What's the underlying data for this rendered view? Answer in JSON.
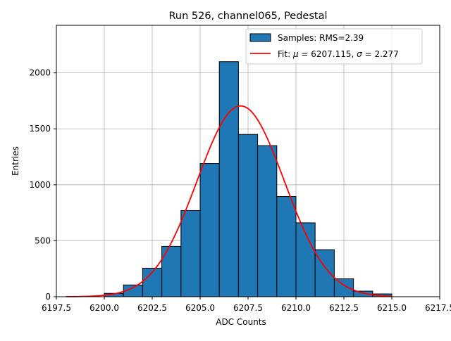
{
  "chart_data": {
    "type": "bar",
    "title": "Run 526, channel065, Pedestal",
    "xlabel": "ADC Counts",
    "ylabel": "Entries",
    "xlim": [
      6197.5,
      6217.5
    ],
    "ylim": [
      0,
      2425
    ],
    "grid": true,
    "legend_position": "top-right",
    "x_ticks": [
      "6197.5",
      "6200.0",
      "6202.5",
      "6205.0",
      "6207.5",
      "6210.0",
      "6212.5",
      "6215.0",
      "6217.5"
    ],
    "y_ticks": [
      "0",
      "500",
      "1000",
      "1500",
      "2000"
    ],
    "x_tick_values": [
      6197.5,
      6200.0,
      6202.5,
      6205.0,
      6207.5,
      6210.0,
      6212.5,
      6215.0,
      6217.5
    ],
    "y_tick_values": [
      0,
      500,
      1000,
      1500,
      2000
    ],
    "series": [
      {
        "name": "Samples: RMS=2.39",
        "kind": "histogram",
        "color": "#1f77b4",
        "bin_width": 1,
        "bins": [
          {
            "x0": 6200,
            "value": 30
          },
          {
            "x0": 6201,
            "value": 105
          },
          {
            "x0": 6202,
            "value": 255
          },
          {
            "x0": 6203,
            "value": 450
          },
          {
            "x0": 6204,
            "value": 770
          },
          {
            "x0": 6205,
            "value": 1190
          },
          {
            "x0": 6206,
            "value": 2100
          },
          {
            "x0": 6207,
            "value": 1450
          },
          {
            "x0": 6208,
            "value": 1350
          },
          {
            "x0": 6209,
            "value": 895
          },
          {
            "x0": 6210,
            "value": 660
          },
          {
            "x0": 6211,
            "value": 420
          },
          {
            "x0": 6212,
            "value": 160
          },
          {
            "x0": 6213,
            "value": 50
          },
          {
            "x0": 6214,
            "value": 25
          }
        ]
      },
      {
        "name_prefix": "Fit: ",
        "mu_symbol": "μ",
        "mu_text": " = 6207.115, ",
        "sigma_symbol": "σ",
        "sigma_text": " = 2.277",
        "kind": "gaussian-fit",
        "color": "#ff0000",
        "mu": 6207.115,
        "sigma": 2.277,
        "amplitude": 1705,
        "x_range": [
          6198,
          6215
        ]
      }
    ]
  }
}
